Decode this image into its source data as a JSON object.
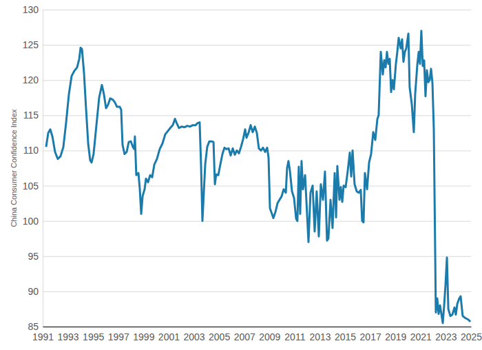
{
  "chart_data": {
    "type": "line",
    "y_label": "China Consumer Confidence Index",
    "color": "#1b7bab",
    "grid": true,
    "xlim": [
      1991,
      2025
    ],
    "xticks": [
      1991,
      1993,
      1995,
      1997,
      1999,
      2001,
      2003,
      2005,
      2007,
      2009,
      2011,
      2013,
      2015,
      2017,
      2019,
      2021,
      2023,
      2025
    ],
    "ylim": [
      85,
      130
    ],
    "yticks": [
      85,
      90,
      95,
      100,
      105,
      110,
      115,
      120,
      125,
      130
    ],
    "x": [
      1991.27,
      1991.44,
      1991.6,
      1991.77,
      1991.98,
      1992.2,
      1992.42,
      1992.64,
      1992.86,
      1993.08,
      1993.3,
      1993.51,
      1993.73,
      1993.9,
      1994.01,
      1994.12,
      1994.28,
      1994.44,
      1994.61,
      1994.77,
      1994.88,
      1995.04,
      1995.26,
      1995.48,
      1995.7,
      1995.86,
      1996.03,
      1996.19,
      1996.36,
      1996.58,
      1996.74,
      1996.9,
      1997.12,
      1997.23,
      1997.34,
      1997.5,
      1997.67,
      1997.83,
      1998.0,
      1998.16,
      1998.27,
      1998.32,
      1998.43,
      1998.6,
      1998.71,
      1998.82,
      1998.93,
      1999.09,
      1999.2,
      1999.36,
      1999.53,
      1999.69,
      1999.86,
      2000.07,
      2000.29,
      2000.51,
      2000.73,
      2000.95,
      2001.17,
      2001.33,
      2001.5,
      2001.66,
      2001.82,
      2002.04,
      2002.26,
      2002.48,
      2002.7,
      2002.92,
      2003.14,
      2003.3,
      2003.46,
      2003.57,
      2003.68,
      2003.79,
      2003.9,
      2004.06,
      2004.23,
      2004.39,
      2004.56,
      2004.67,
      2004.77,
      2004.94,
      2005.1,
      2005.27,
      2005.43,
      2005.59,
      2005.76,
      2005.92,
      2006.09,
      2006.25,
      2006.41,
      2006.58,
      2006.74,
      2006.91,
      2007.07,
      2007.18,
      2007.34,
      2007.51,
      2007.67,
      2007.84,
      2008.0,
      2008.16,
      2008.33,
      2008.49,
      2008.66,
      2008.82,
      2008.93,
      2009.04,
      2009.2,
      2009.31,
      2009.48,
      2009.64,
      2009.8,
      2009.97,
      2010.13,
      2010.3,
      2010.4,
      2010.51,
      2010.62,
      2010.79,
      2010.95,
      2011.12,
      2011.22,
      2011.33,
      2011.44,
      2011.55,
      2011.66,
      2011.83,
      2012.1,
      2012.26,
      2012.43,
      2012.59,
      2012.75,
      2012.92,
      2013.08,
      2013.25,
      2013.41,
      2013.57,
      2013.68,
      2013.85,
      2014.01,
      2014.18,
      2014.29,
      2014.39,
      2014.56,
      2014.67,
      2014.78,
      2014.89,
      2015.05,
      2015.21,
      2015.38,
      2015.49,
      2015.6,
      2015.76,
      2015.93,
      2016.09,
      2016.25,
      2016.36,
      2016.47,
      2016.58,
      2016.75,
      2016.91,
      2017.07,
      2017.24,
      2017.4,
      2017.57,
      2017.67,
      2017.84,
      2018.0,
      2018.11,
      2018.22,
      2018.33,
      2018.44,
      2018.55,
      2018.66,
      2018.77,
      2018.88,
      2019.04,
      2019.15,
      2019.26,
      2019.42,
      2019.53,
      2019.64,
      2019.75,
      2019.86,
      2020.03,
      2020.13,
      2020.3,
      2020.46,
      2020.57,
      2020.74,
      2020.85,
      2020.95,
      2021.06,
      2021.17,
      2021.28,
      2021.39,
      2021.5,
      2021.61,
      2021.72,
      2021.83,
      2021.94,
      2022.05,
      2022.21,
      2022.32,
      2022.43,
      2022.54,
      2022.65,
      2022.76,
      2022.87,
      2022.98,
      2023.09,
      2023.2,
      2023.36,
      2023.52,
      2023.69,
      2023.8,
      2023.91,
      2024.07,
      2024.18,
      2024.34,
      2024.56,
      2024.78,
      2024.95
    ],
    "values": [
      110.5,
      112.5,
      113,
      112,
      109.8,
      108.8,
      109.2,
      110.5,
      114,
      118,
      120.6,
      121.3,
      121.8,
      123,
      124.6,
      124.4,
      121,
      116,
      111,
      108.6,
      108.3,
      109.5,
      113.5,
      117.5,
      119.3,
      118,
      116,
      116.5,
      117.4,
      117.2,
      116.8,
      116.2,
      116.2,
      115.8,
      110.8,
      109.5,
      109.8,
      111.2,
      111.3,
      110.5,
      110.2,
      112,
      106.5,
      106.8,
      104.5,
      101,
      103.5,
      104.5,
      106,
      105.5,
      106.5,
      106.2,
      108,
      108.8,
      110.2,
      111,
      112.3,
      112.8,
      113.3,
      113.6,
      114.5,
      113.8,
      113.2,
      113.4,
      113.3,
      113.5,
      113.4,
      113.6,
      113.6,
      113.9,
      114,
      108,
      100,
      104,
      108,
      110.5,
      111.3,
      111.3,
      111.2,
      105.2,
      106.6,
      106.5,
      108,
      109.5,
      110.4,
      110.2,
      110.3,
      109.3,
      110.3,
      109.4,
      110,
      109.6,
      110.5,
      111.6,
      113,
      111.8,
      112.5,
      113.6,
      112.6,
      113.4,
      112.5,
      110.3,
      110,
      110.4,
      109.8,
      110.4,
      109,
      101.8,
      101,
      100.4,
      101.3,
      102.5,
      103,
      103.5,
      104.5,
      104,
      107.5,
      108.5,
      107.2,
      104.2,
      103.3,
      100.3,
      100,
      107.7,
      101,
      108.5,
      104.5,
      106.5,
      97,
      104,
      105,
      98.5,
      104.2,
      97.8,
      105.2,
      103,
      107,
      97.2,
      97.5,
      103,
      99,
      106.8,
      100.5,
      107.8,
      103,
      104.8,
      102.7,
      105,
      104.8,
      107,
      109.7,
      106.3,
      110,
      105.2,
      104.2,
      104,
      104.4,
      100,
      99.8,
      106.8,
      104.5,
      108.3,
      109.5,
      112.6,
      111.5,
      114.5,
      115,
      124,
      120.8,
      122.8,
      121.8,
      124,
      122.3,
      123,
      118.3,
      120,
      118.7,
      122.3,
      124,
      126,
      124.5,
      125.8,
      122.6,
      124,
      124.5,
      126.6,
      119,
      116.6,
      112.6,
      118,
      122.2,
      124,
      122.3,
      127,
      122,
      122.8,
      117.7,
      121.4,
      119.7,
      120,
      121.6,
      119.6,
      113,
      87,
      89,
      86.8,
      88,
      86.8,
      85.5,
      88,
      91,
      94.8,
      87.5,
      86.5,
      86.7,
      87.7,
      86.7,
      88.2,
      89,
      89.3,
      86.5,
      86.2,
      86,
      85.7
    ]
  }
}
